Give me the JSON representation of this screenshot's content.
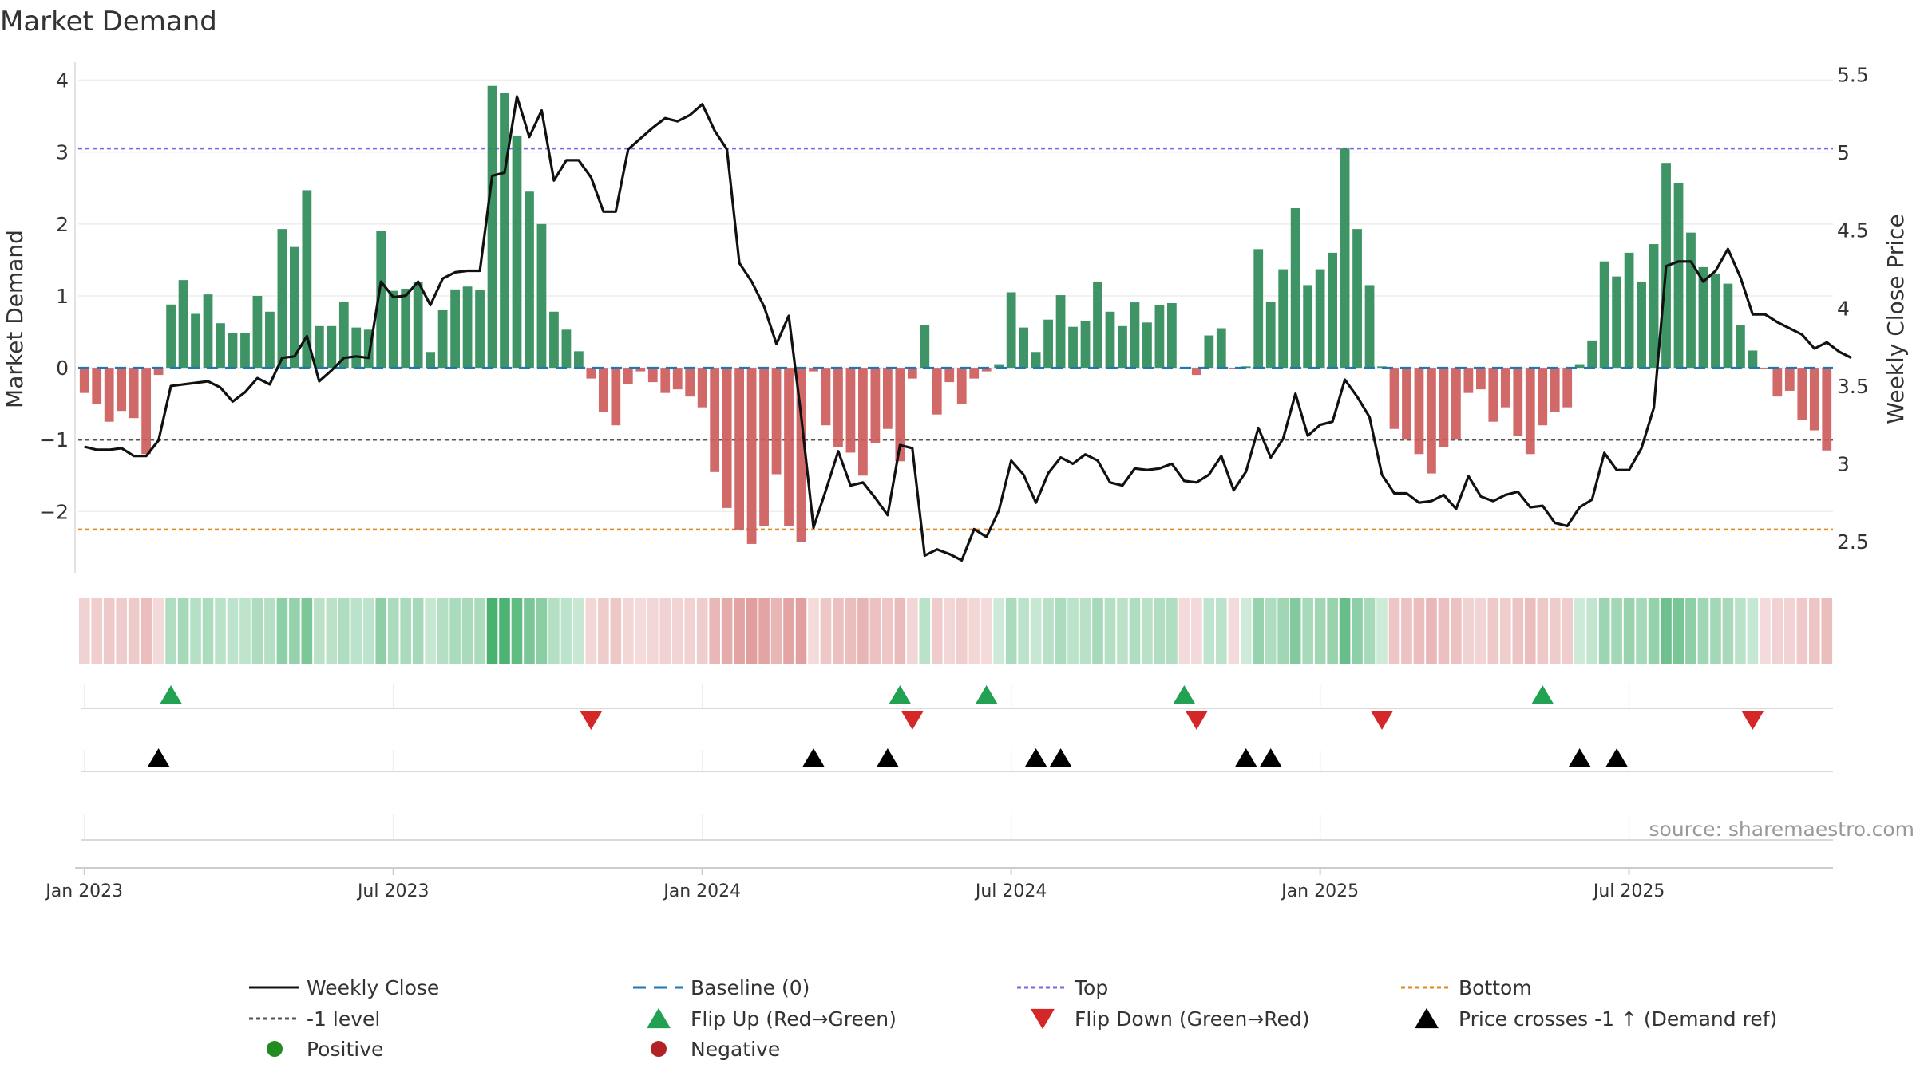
{
  "chart_data": {
    "type": "bar",
    "title": "Market Demand",
    "ylabel": "Market Demand",
    "y2label": "Weekly Close Price",
    "source": "source: sharemaestro.com",
    "ylim": [
      -2.85,
      4.25
    ],
    "y2lim": [
      2.3,
      5.58
    ],
    "yticks": [
      4,
      3,
      2,
      1,
      0,
      -1,
      -2
    ],
    "ytick_labels": [
      "4",
      "3",
      "2",
      "1",
      "0",
      "−1",
      "−2"
    ],
    "y2ticks": [
      5.5,
      5,
      4.5,
      4,
      3.5,
      3,
      2.5
    ],
    "y2tick_labels": [
      "5.5",
      "5",
      "4.5",
      "4",
      "3.5",
      "3",
      "2.5"
    ],
    "x_tick_weeks": [
      0.5,
      25.5,
      50.5,
      75.5,
      100.5,
      125.5
    ],
    "x_tick_labels": [
      "Jan 2023",
      "Jul 2023",
      "Jan 2024",
      "Jul 2024",
      "Jan 2025",
      "Jul 2025"
    ],
    "reference_lines": {
      "top": 3.05,
      "bottom": -2.25,
      "minus_one": -1,
      "baseline": 0
    },
    "demand": [
      -0.35,
      -0.5,
      -0.75,
      -0.6,
      -0.7,
      -1.2,
      -0.1,
      0.88,
      1.22,
      0.75,
      1.02,
      0.62,
      0.48,
      0.48,
      1.0,
      0.78,
      1.93,
      1.68,
      2.47,
      0.58,
      0.58,
      0.92,
      0.56,
      0.53,
      1.9,
      1.07,
      1.1,
      1.2,
      0.22,
      0.8,
      1.09,
      1.13,
      1.08,
      3.92,
      3.82,
      3.23,
      2.45,
      2.0,
      0.78,
      0.53,
      0.23,
      -0.15,
      -0.62,
      -0.8,
      -0.23,
      -0.05,
      -0.2,
      -0.35,
      -0.3,
      -0.4,
      -0.55,
      -1.45,
      -1.95,
      -2.25,
      -2.45,
      -2.2,
      -1.48,
      -2.2,
      -2.42,
      -0.05,
      -0.8,
      -1.1,
      -1.18,
      -1.5,
      -1.05,
      -0.85,
      -1.3,
      -0.15,
      0.6,
      -0.65,
      -0.2,
      -0.5,
      -0.15,
      -0.05,
      0.05,
      1.05,
      0.56,
      0.22,
      0.67,
      1.01,
      0.57,
      0.65,
      1.2,
      0.78,
      0.58,
      0.91,
      0.63,
      0.87,
      0.9,
      -0.02,
      -0.1,
      0.45,
      0.55,
      -0.02,
      0.02,
      1.65,
      0.92,
      1.37,
      2.22,
      1.15,
      1.37,
      1.6,
      3.05,
      1.93,
      1.15,
      0.02,
      -0.85,
      -1.0,
      -1.2,
      -1.47,
      -1.1,
      -1.0,
      -0.35,
      -0.3,
      -0.75,
      -0.55,
      -0.95,
      -1.2,
      -0.8,
      -0.62,
      -0.55,
      0.05,
      0.38,
      1.48,
      1.27,
      1.6,
      1.2,
      1.72,
      2.85,
      2.57,
      1.88,
      1.4,
      1.3,
      1.17,
      0.6,
      0.24,
      -0.02,
      -0.4,
      -0.32,
      -0.72,
      -0.87,
      -1.15
    ],
    "weekly_close": [
      3.11,
      3.09,
      3.09,
      3.1,
      3.05,
      3.05,
      3.15,
      3.5,
      3.51,
      3.52,
      3.53,
      3.49,
      3.4,
      3.46,
      3.55,
      3.51,
      3.68,
      3.69,
      3.82,
      3.53,
      3.6,
      3.68,
      3.69,
      3.68,
      4.17,
      4.07,
      4.08,
      4.17,
      4.02,
      4.19,
      4.23,
      4.24,
      4.24,
      4.85,
      4.87,
      5.36,
      5.1,
      5.27,
      4.82,
      4.95,
      4.95,
      4.84,
      4.62,
      4.62,
      5.02,
      5.09,
      5.16,
      5.22,
      5.2,
      5.24,
      5.31,
      5.14,
      5.02,
      4.29,
      4.17,
      4.01,
      3.77,
      3.95,
      3.31,
      2.59,
      2.83,
      3.08,
      2.86,
      2.88,
      2.78,
      2.67,
      3.12,
      3.1,
      2.41,
      2.45,
      2.42,
      2.38,
      2.58,
      2.53,
      2.7,
      3.02,
      2.93,
      2.75,
      2.94,
      3.04,
      3.0,
      3.06,
      3.02,
      2.88,
      2.86,
      2.97,
      2.96,
      2.97,
      3.0,
      2.89,
      2.88,
      2.93,
      3.05,
      2.83,
      2.95,
      3.23,
      3.04,
      3.16,
      3.45,
      3.18,
      3.25,
      3.27,
      3.54,
      3.43,
      3.3,
      2.93,
      2.81,
      2.81,
      2.75,
      2.76,
      2.8,
      2.71,
      2.92,
      2.79,
      2.76,
      2.8,
      2.82,
      2.72,
      2.73,
      2.62,
      2.6,
      2.72,
      2.77,
      3.07,
      2.96,
      2.96,
      3.1,
      3.36,
      4.27,
      4.3,
      4.3,
      4.17,
      4.24,
      4.38,
      4.2,
      3.96,
      3.96,
      3.91,
      3.87,
      3.83,
      3.74,
      3.78,
      3.72,
      3.68
    ],
    "markers": {
      "flip_up_weeks": [
        7,
        66,
        73,
        89,
        118
      ],
      "flip_down_weeks": [
        41,
        67,
        90,
        105,
        135
      ],
      "price_cross_weeks": [
        6,
        59,
        65,
        77,
        79,
        94,
        96,
        121,
        124
      ]
    },
    "legend": [
      "Weekly Close",
      "Baseline (0)",
      "Top",
      "Bottom",
      "-1 level",
      "Flip Up (Red→Green)",
      "Flip Down (Green→Red)",
      "Price crosses -1 ↑ (Demand ref)",
      "Positive",
      "Negative"
    ],
    "colors": {
      "positive": "#2e8b57",
      "negative": "#cd5c5c",
      "line": "#111111",
      "baseline": "#1f77b4",
      "top": "#7b68ee",
      "bottom": "#e08a1e",
      "minus_one": "#555555",
      "flip_up": "#22a152",
      "flip_down": "#d62728",
      "price_cross": "#000000",
      "positive_dot": "#228b22",
      "negative_dot": "#b22222"
    }
  }
}
